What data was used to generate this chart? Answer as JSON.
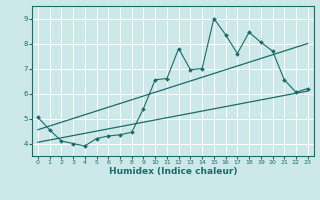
{
  "xlabel": "Humidex (Indice chaleur)",
  "bg_color": "#cce8e8",
  "line_color": "#1a6b6b",
  "grid_color": "#ffffff",
  "xlim": [
    -0.5,
    23.5
  ],
  "ylim": [
    3.5,
    9.5
  ],
  "yticks": [
    4,
    5,
    6,
    7,
    8,
    9
  ],
  "xticks": [
    0,
    1,
    2,
    3,
    4,
    5,
    6,
    7,
    8,
    9,
    10,
    11,
    12,
    13,
    14,
    15,
    16,
    17,
    18,
    19,
    20,
    21,
    22,
    23
  ],
  "data_line": [
    [
      0,
      5.05
    ],
    [
      1,
      4.55
    ],
    [
      2,
      4.1
    ],
    [
      3,
      4.0
    ],
    [
      4,
      3.9
    ],
    [
      5,
      4.2
    ],
    [
      6,
      4.3
    ],
    [
      7,
      4.35
    ],
    [
      8,
      4.45
    ],
    [
      9,
      5.4
    ],
    [
      10,
      6.55
    ],
    [
      11,
      6.6
    ],
    [
      12,
      7.8
    ],
    [
      13,
      6.95
    ],
    [
      14,
      7.0
    ],
    [
      15,
      9.0
    ],
    [
      16,
      8.35
    ],
    [
      17,
      7.6
    ],
    [
      18,
      8.45
    ],
    [
      19,
      8.05
    ],
    [
      20,
      7.7
    ],
    [
      21,
      6.55
    ],
    [
      22,
      6.05
    ],
    [
      23,
      6.2
    ]
  ],
  "trend_line1": [
    [
      0,
      4.05
    ],
    [
      23,
      6.1
    ]
  ],
  "trend_line2": [
    [
      0,
      4.55
    ],
    [
      23,
      8.0
    ]
  ]
}
